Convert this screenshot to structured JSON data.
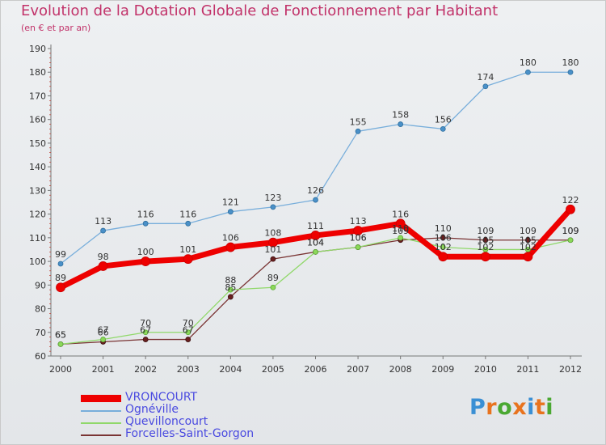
{
  "header": {
    "title": "Evolution de la Dotation Globale de Fonctionnement par Habitant",
    "subtitle": "(en € et par an)"
  },
  "logo": {
    "text": "Proxiti",
    "colors": [
      "#3a8fd4",
      "#e8731e",
      "#4aa832",
      "#e8731e",
      "#3a8fd4",
      "#e8731e",
      "#4aa832"
    ]
  },
  "chart_data": {
    "type": "line",
    "title": "Evolution de la Dotation Globale de Fonctionnement par Habitant",
    "subtitle": "(en € et par an)",
    "xlabel": "",
    "ylabel": "",
    "x": [
      "2000",
      "2001",
      "2002",
      "2003",
      "2004",
      "2005",
      "2006",
      "2007",
      "2008",
      "2009",
      "2010",
      "2011",
      "2012"
    ],
    "ylim": [
      60,
      190
    ],
    "yticks": [
      60,
      70,
      80,
      90,
      100,
      110,
      120,
      130,
      140,
      150,
      160,
      170,
      180,
      190
    ],
    "grid": false,
    "legend_position": "bottom-left",
    "series": [
      {
        "name": "VRONCOURT",
        "color": "#ee0000",
        "values": [
          89,
          98,
          100,
          101,
          106,
          108,
          111,
          113,
          116,
          102,
          102,
          102,
          122
        ]
      },
      {
        "name": "Ognéville",
        "color": "#78aedb",
        "values": [
          99,
          113,
          116,
          116,
          121,
          123,
          126,
          155,
          158,
          156,
          174,
          180,
          180
        ]
      },
      {
        "name": "Quevilloncourt",
        "color": "#90d86a",
        "values": [
          65,
          67,
          70,
          70,
          88,
          89,
          104,
          106,
          110,
          106,
          105,
          105,
          109
        ]
      },
      {
        "name": "Forcelles-Saint-Gorgon",
        "color": "#7a3434",
        "values": [
          65,
          66,
          67,
          67,
          85,
          101,
          104,
          106,
          109,
          110,
          109,
          109,
          109
        ]
      }
    ]
  }
}
